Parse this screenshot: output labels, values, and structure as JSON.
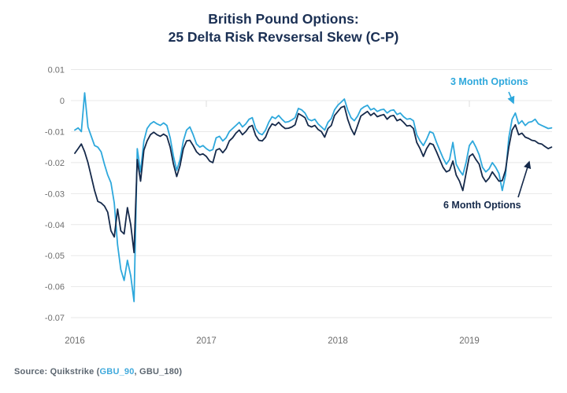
{
  "title": {
    "line1": "British Pound Options:",
    "line2": "25 Delta Risk Revsersal Skew (C-P)"
  },
  "source": {
    "prefix": "Source: Quikstrike (",
    "link": "GBU_90",
    "suffix": ", GBU_180)"
  },
  "colors": {
    "title_navy": "#1B3054",
    "series_3m_blue": "#2EA8DC",
    "series_6m_navy": "#15294A",
    "gridline": "#E8E8E8",
    "axis_text": "#6E6E6E",
    "source_text": "#5C6670",
    "source_link": "#3FA9DC"
  },
  "chart_data": {
    "type": "line",
    "title": "British Pound Options: 25 Delta Risk Revsersal Skew (C-P)",
    "xlabel": "",
    "ylabel": "",
    "grid": "horizontal",
    "legend_position": "annotated-on-chart",
    "x_axis": {
      "range": [
        2016.0,
        2019.65
      ],
      "ticks": [
        2016,
        2017,
        2018,
        2019
      ],
      "tick_labels": [
        "2016",
        "2017",
        "2018",
        "2019"
      ],
      "tick_marks": [
        2017,
        2018,
        2019
      ]
    },
    "y_axis": {
      "range": [
        -0.07,
        0.01
      ],
      "ticks": [
        0.01,
        0,
        -0.01,
        -0.02,
        -0.03,
        -0.04,
        -0.05,
        -0.06,
        -0.07
      ],
      "tick_labels": [
        "0.01",
        "0",
        "-0.01",
        "-0.02",
        "-0.03",
        "-0.04",
        "-0.05",
        "-0.06",
        "-0.07"
      ]
    },
    "x_start": 2016.0,
    "x_step": 0.025,
    "annotations": [
      {
        "label": "3 Month Options",
        "series": 0
      },
      {
        "label": "6 Month Options",
        "series": 1
      }
    ],
    "series": [
      {
        "name": "3 Month Options",
        "color": "#2EA8DC",
        "values": [
          -0.0095,
          -0.0088,
          -0.01,
          0.0025,
          -0.0085,
          -0.0115,
          -0.0145,
          -0.015,
          -0.0165,
          -0.0205,
          -0.024,
          -0.0265,
          -0.033,
          -0.0465,
          -0.0545,
          -0.058,
          -0.0515,
          -0.0565,
          -0.0648,
          -0.0155,
          -0.023,
          -0.013,
          -0.009,
          -0.0075,
          -0.0068,
          -0.0075,
          -0.008,
          -0.0072,
          -0.008,
          -0.012,
          -0.018,
          -0.0225,
          -0.019,
          -0.013,
          -0.0095,
          -0.0085,
          -0.011,
          -0.014,
          -0.015,
          -0.0145,
          -0.0155,
          -0.0162,
          -0.0158,
          -0.012,
          -0.0115,
          -0.013,
          -0.012,
          -0.01,
          -0.009,
          -0.008,
          -0.007,
          -0.0085,
          -0.0075,
          -0.006,
          -0.0055,
          -0.009,
          -0.0105,
          -0.011,
          -0.0095,
          -0.007,
          -0.0052,
          -0.0058,
          -0.0048,
          -0.006,
          -0.007,
          -0.0068,
          -0.0062,
          -0.0055,
          -0.0025,
          -0.003,
          -0.004,
          -0.006,
          -0.0065,
          -0.006,
          -0.0075,
          -0.0085,
          -0.0095,
          -0.007,
          -0.0058,
          -0.003,
          -0.0015,
          -0.0005,
          0.0005,
          -0.003,
          -0.0055,
          -0.0065,
          -0.005,
          -0.0028,
          -0.002,
          -0.0015,
          -0.003,
          -0.0025,
          -0.0035,
          -0.003,
          -0.0028,
          -0.004,
          -0.0032,
          -0.003,
          -0.0045,
          -0.004,
          -0.0052,
          -0.006,
          -0.0058,
          -0.0065,
          -0.011,
          -0.013,
          -0.0145,
          -0.0125,
          -0.01,
          -0.0105,
          -0.0135,
          -0.016,
          -0.0185,
          -0.0205,
          -0.019,
          -0.0135,
          -0.0205,
          -0.0225,
          -0.024,
          -0.02,
          -0.0145,
          -0.013,
          -0.015,
          -0.0175,
          -0.0215,
          -0.023,
          -0.022,
          -0.02,
          -0.0215,
          -0.0235,
          -0.029,
          -0.024,
          -0.012,
          -0.006,
          -0.004,
          -0.0075,
          -0.0065,
          -0.008,
          -0.007,
          -0.0068,
          -0.006,
          -0.0075,
          -0.008,
          -0.0085,
          -0.009,
          -0.0088
        ]
      },
      {
        "name": "6 Month Options",
        "color": "#15294A",
        "values": [
          -0.017,
          -0.0155,
          -0.014,
          -0.0165,
          -0.02,
          -0.0245,
          -0.029,
          -0.0325,
          -0.033,
          -0.034,
          -0.036,
          -0.042,
          -0.044,
          -0.035,
          -0.042,
          -0.043,
          -0.0345,
          -0.04,
          -0.049,
          -0.019,
          -0.026,
          -0.016,
          -0.013,
          -0.011,
          -0.0102,
          -0.011,
          -0.0115,
          -0.0108,
          -0.0115,
          -0.015,
          -0.0205,
          -0.0245,
          -0.021,
          -0.0155,
          -0.013,
          -0.0128,
          -0.0145,
          -0.0165,
          -0.0175,
          -0.0172,
          -0.018,
          -0.0195,
          -0.02,
          -0.016,
          -0.0155,
          -0.0168,
          -0.0155,
          -0.013,
          -0.012,
          -0.0105,
          -0.0095,
          -0.011,
          -0.01,
          -0.0085,
          -0.008,
          -0.0112,
          -0.0128,
          -0.013,
          -0.0118,
          -0.0092,
          -0.0075,
          -0.008,
          -0.007,
          -0.0082,
          -0.009,
          -0.0089,
          -0.0085,
          -0.0078,
          -0.0042,
          -0.0048,
          -0.0055,
          -0.008,
          -0.0085,
          -0.008,
          -0.0093,
          -0.01,
          -0.0118,
          -0.009,
          -0.008,
          -0.0048,
          -0.0035,
          -0.0022,
          -0.0018,
          -0.006,
          -0.009,
          -0.011,
          -0.008,
          -0.005,
          -0.0042,
          -0.0035,
          -0.0048,
          -0.004,
          -0.0052,
          -0.0048,
          -0.0045,
          -0.006,
          -0.005,
          -0.0048,
          -0.0065,
          -0.006,
          -0.007,
          -0.0082,
          -0.008,
          -0.009,
          -0.0135,
          -0.0155,
          -0.018,
          -0.0155,
          -0.0138,
          -0.0142,
          -0.0165,
          -0.019,
          -0.0215,
          -0.023,
          -0.0225,
          -0.0195,
          -0.024,
          -0.026,
          -0.029,
          -0.0235,
          -0.018,
          -0.0172,
          -0.019,
          -0.0205,
          -0.0245,
          -0.0262,
          -0.025,
          -0.023,
          -0.0245,
          -0.026,
          -0.0258,
          -0.0225,
          -0.015,
          -0.0095,
          -0.0078,
          -0.011,
          -0.0105,
          -0.0118,
          -0.0122,
          -0.0128,
          -0.013,
          -0.0138,
          -0.014,
          -0.0148,
          -0.0155,
          -0.015
        ]
      }
    ]
  }
}
